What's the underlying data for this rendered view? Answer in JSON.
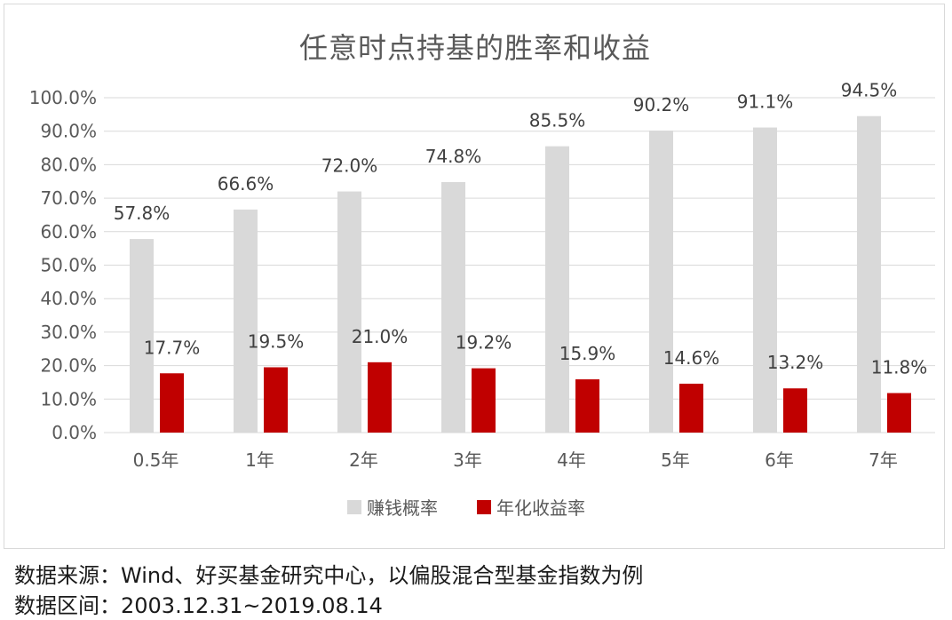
{
  "chart_data": {
    "type": "bar",
    "title": "任意时点持基的胜率和收益",
    "categories": [
      "0.5年",
      "1年",
      "2年",
      "3年",
      "4年",
      "5年",
      "6年",
      "7年"
    ],
    "series": [
      {
        "name": "赚钱概率",
        "color": "#d9d9d9",
        "values": [
          57.8,
          66.6,
          72.0,
          74.8,
          85.5,
          90.2,
          91.1,
          94.5
        ],
        "labels": [
          "57.8%",
          "66.6%",
          "72.0%",
          "74.8%",
          "85.5%",
          "90.2%",
          "91.1%",
          "94.5%"
        ]
      },
      {
        "name": "年化收益率",
        "color": "#c00000",
        "values": [
          17.7,
          19.5,
          21.0,
          19.2,
          15.9,
          14.6,
          13.2,
          11.8
        ],
        "labels": [
          "17.7%",
          "19.5%",
          "21.0%",
          "19.2%",
          "15.9%",
          "14.6%",
          "13.2%",
          "11.8%"
        ]
      }
    ],
    "ylim": [
      0,
      100
    ],
    "yticks": [
      "0.0%",
      "10.0%",
      "20.0%",
      "30.0%",
      "40.0%",
      "50.0%",
      "60.0%",
      "70.0%",
      "80.0%",
      "90.0%",
      "100.0%"
    ],
    "grid": true,
    "legend": "bottom",
    "xlabel": "",
    "ylabel": ""
  },
  "source": {
    "line1": "数据来源：Wind、好买基金研究中心，以偏股混合型基金指数为例",
    "line2": "数据区间：2003.12.31~2019.08.14"
  }
}
